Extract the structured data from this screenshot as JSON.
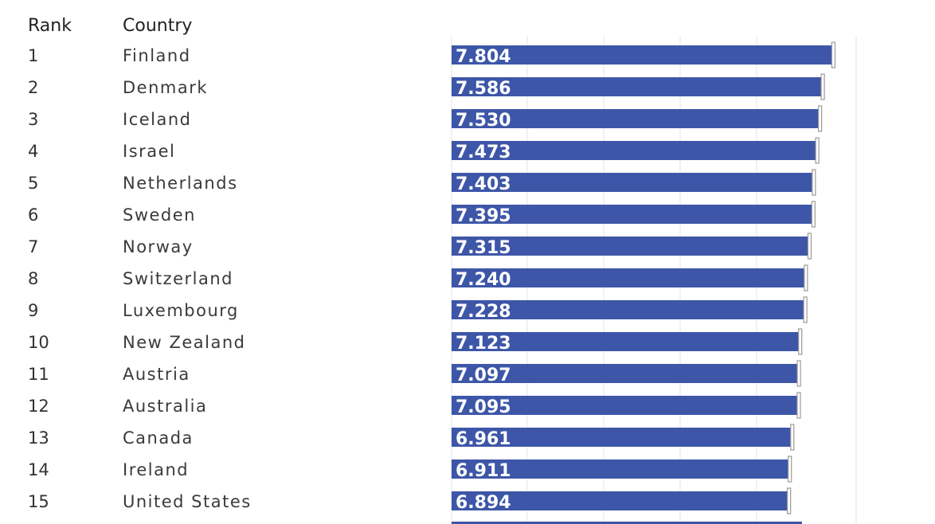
{
  "headers": {
    "rank": "Rank",
    "country": "Country"
  },
  "colors": {
    "bar": "#3d56a8",
    "text": "#333333",
    "gridline": "#e3e3e3",
    "interval": "#9a9a9a",
    "value_text": "#ffffff"
  },
  "chart_data": {
    "type": "bar",
    "orientation": "horizontal",
    "categories": [
      "Finland",
      "Denmark",
      "Iceland",
      "Israel",
      "Netherlands",
      "Sweden",
      "Norway",
      "Switzerland",
      "Luxembourg",
      "New Zealand",
      "Austria",
      "Australia",
      "Canada",
      "Ireland",
      "United States"
    ],
    "ranks": [
      "1",
      "2",
      "3",
      "4",
      "5",
      "6",
      "7",
      "8",
      "9",
      "10",
      "11",
      "12",
      "13",
      "14",
      "15"
    ],
    "values": [
      7.804,
      7.586,
      7.53,
      7.473,
      7.403,
      7.395,
      7.315,
      7.24,
      7.228,
      7.123,
      7.097,
      7.095,
      6.961,
      6.911,
      6.894
    ],
    "value_labels": [
      "7.804",
      "7.586",
      "7.530",
      "7.473",
      "7.403",
      "7.395",
      "7.315",
      "7.240",
      "7.228",
      "7.123",
      "7.097",
      "7.095",
      "6.961",
      "6.911",
      "6.894"
    ],
    "title": "",
    "xlabel": "",
    "ylabel": "",
    "xlim": [
      0,
      8.4
    ],
    "grid": true,
    "legend": "none"
  }
}
